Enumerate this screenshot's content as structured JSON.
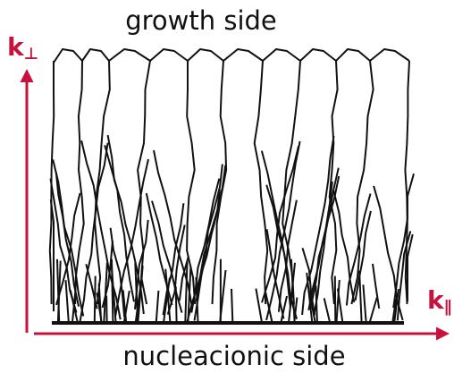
{
  "top_label": "growth side",
  "bottom_label": "nucleacionic side",
  "vertical_axis": {
    "symbol": "k",
    "subscript": "⊥"
  },
  "horizontal_axis": {
    "symbol": "k",
    "subscript": "∥"
  }
}
